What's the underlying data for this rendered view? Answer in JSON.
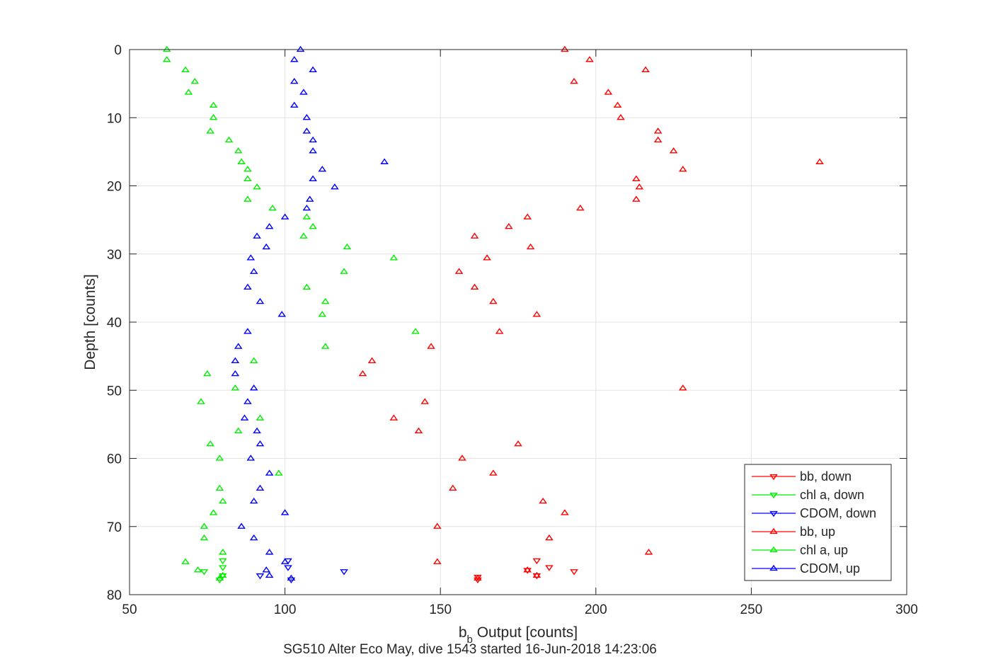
{
  "chart_data": {
    "type": "scatter",
    "title": "SG510 Alter Eco May, dive 1543 started 16-Jun-2018 14:23:06",
    "xlabel_main": "b",
    "xlabel_sub": "b",
    "xlabel_rest": " Output [counts]",
    "ylabel": "Depth [counts]",
    "xlim": [
      50,
      300
    ],
    "ylim": [
      0,
      80
    ],
    "y_reversed": true,
    "grid": true,
    "legend_position": "bottom-right",
    "x_ticks": [
      "50",
      "100",
      "150",
      "200",
      "250",
      "300"
    ],
    "y_ticks": [
      "0",
      "10",
      "20",
      "30",
      "40",
      "50",
      "60",
      "70",
      "80"
    ],
    "series": [
      {
        "name": "bb, down",
        "color": "#ff0000",
        "marker": "triangle-down",
        "points": [
          [
            181,
            75
          ],
          [
            185,
            76
          ],
          [
            193,
            76.6
          ],
          [
            178,
            76.4
          ],
          [
            181,
            77.2
          ],
          [
            162,
            77.4
          ],
          [
            162,
            77.8
          ]
        ]
      },
      {
        "name": "chl a, down",
        "color": "#00ee00",
        "marker": "triangle-down",
        "points": [
          [
            80,
            75
          ],
          [
            80,
            76
          ],
          [
            74,
            76.6
          ],
          [
            80,
            77.2
          ],
          [
            79,
            77.8
          ]
        ]
      },
      {
        "name": "CDOM, down",
        "color": "#0000ff",
        "marker": "triangle-down",
        "points": [
          [
            101,
            75
          ],
          [
            101,
            76
          ],
          [
            119,
            76.6
          ],
          [
            92,
            77.2
          ],
          [
            102,
            77.8
          ]
        ]
      },
      {
        "name": "bb, up",
        "color": "#ff0000",
        "marker": "triangle-up",
        "points": [
          [
            190,
            0
          ],
          [
            198,
            1.5
          ],
          [
            216,
            3
          ],
          [
            193,
            4.7
          ],
          [
            204,
            6.3
          ],
          [
            207,
            8.2
          ],
          [
            208,
            10
          ],
          [
            220,
            12
          ],
          [
            220,
            13.3
          ],
          [
            225,
            14.9
          ],
          [
            272,
            16.5
          ],
          [
            228,
            17.6
          ],
          [
            213,
            19
          ],
          [
            214,
            20.2
          ],
          [
            213,
            22
          ],
          [
            195,
            23.3
          ],
          [
            178,
            24.6
          ],
          [
            172,
            26
          ],
          [
            161,
            27.4
          ],
          [
            179,
            29
          ],
          [
            165,
            30.6
          ],
          [
            156,
            32.6
          ],
          [
            161,
            34.9
          ],
          [
            167,
            37
          ],
          [
            181,
            38.9
          ],
          [
            169,
            41.4
          ],
          [
            147,
            43.6
          ],
          [
            128,
            45.7
          ],
          [
            125,
            47.6
          ],
          [
            228,
            49.7
          ],
          [
            145,
            51.7
          ],
          [
            135,
            54.1
          ],
          [
            143,
            56
          ],
          [
            175,
            57.9
          ],
          [
            157,
            60
          ],
          [
            167,
            62.2
          ],
          [
            154,
            64.4
          ],
          [
            183,
            66.3
          ],
          [
            190,
            68
          ],
          [
            149,
            70
          ],
          [
            185,
            71.7
          ],
          [
            217,
            73.8
          ],
          [
            149,
            75.2
          ],
          [
            178,
            76.4
          ],
          [
            181,
            77.2
          ],
          [
            162,
            77.6
          ]
        ]
      },
      {
        "name": "chl a, up",
        "color": "#00ee00",
        "marker": "triangle-up",
        "points": [
          [
            62,
            0
          ],
          [
            62,
            1.5
          ],
          [
            68,
            3
          ],
          [
            71,
            4.7
          ],
          [
            69,
            6.3
          ],
          [
            77,
            8.2
          ],
          [
            77,
            10
          ],
          [
            76,
            12
          ],
          [
            82,
            13.3
          ],
          [
            85,
            14.9
          ],
          [
            86,
            16.5
          ],
          [
            88,
            17.6
          ],
          [
            88,
            19
          ],
          [
            91,
            20.2
          ],
          [
            88,
            22
          ],
          [
            96,
            23.3
          ],
          [
            107,
            24.6
          ],
          [
            109,
            26
          ],
          [
            106,
            27.4
          ],
          [
            120,
            29
          ],
          [
            135,
            30.6
          ],
          [
            119,
            32.6
          ],
          [
            107,
            34.9
          ],
          [
            113,
            37
          ],
          [
            112,
            38.9
          ],
          [
            142,
            41.4
          ],
          [
            113,
            43.6
          ],
          [
            90,
            45.7
          ],
          [
            75,
            47.6
          ],
          [
            84,
            49.7
          ],
          [
            73,
            51.7
          ],
          [
            92,
            54.1
          ],
          [
            85,
            56
          ],
          [
            76,
            57.9
          ],
          [
            79,
            60
          ],
          [
            98,
            62.2
          ],
          [
            79,
            64.4
          ],
          [
            80,
            66.3
          ],
          [
            77,
            68
          ],
          [
            74,
            70
          ],
          [
            74,
            71.7
          ],
          [
            80,
            73.8
          ],
          [
            68,
            75.2
          ],
          [
            72,
            76.4
          ],
          [
            80,
            77.2
          ],
          [
            79,
            77.6
          ]
        ]
      },
      {
        "name": "CDOM, up",
        "color": "#0000ff",
        "marker": "triangle-up",
        "points": [
          [
            105,
            0
          ],
          [
            103,
            1.5
          ],
          [
            109,
            3
          ],
          [
            103,
            4.7
          ],
          [
            106,
            6.3
          ],
          [
            103,
            8.2
          ],
          [
            107,
            10
          ],
          [
            107,
            12
          ],
          [
            109,
            13.3
          ],
          [
            109,
            14.9
          ],
          [
            132,
            16.5
          ],
          [
            112,
            17.6
          ],
          [
            109,
            19
          ],
          [
            116,
            20.2
          ],
          [
            108,
            22
          ],
          [
            107,
            23.3
          ],
          [
            100,
            24.6
          ],
          [
            95,
            26
          ],
          [
            91,
            27.4
          ],
          [
            94,
            29
          ],
          [
            89,
            30.6
          ],
          [
            90,
            32.6
          ],
          [
            88,
            34.9
          ],
          [
            92,
            37
          ],
          [
            99,
            38.9
          ],
          [
            88,
            41.4
          ],
          [
            85,
            43.6
          ],
          [
            84,
            45.7
          ],
          [
            84,
            47.6
          ],
          [
            90,
            49.7
          ],
          [
            88,
            51.7
          ],
          [
            87,
            54.1
          ],
          [
            91,
            56
          ],
          [
            92,
            57.9
          ],
          [
            89,
            60
          ],
          [
            95,
            62.2
          ],
          [
            92,
            64.4
          ],
          [
            90,
            66.3
          ],
          [
            100,
            68
          ],
          [
            86,
            70
          ],
          [
            90,
            71.7
          ],
          [
            95,
            73.8
          ],
          [
            100,
            75.2
          ],
          [
            94,
            76.4
          ],
          [
            95,
            77.2
          ],
          [
            102,
            77.6
          ]
        ]
      }
    ]
  }
}
